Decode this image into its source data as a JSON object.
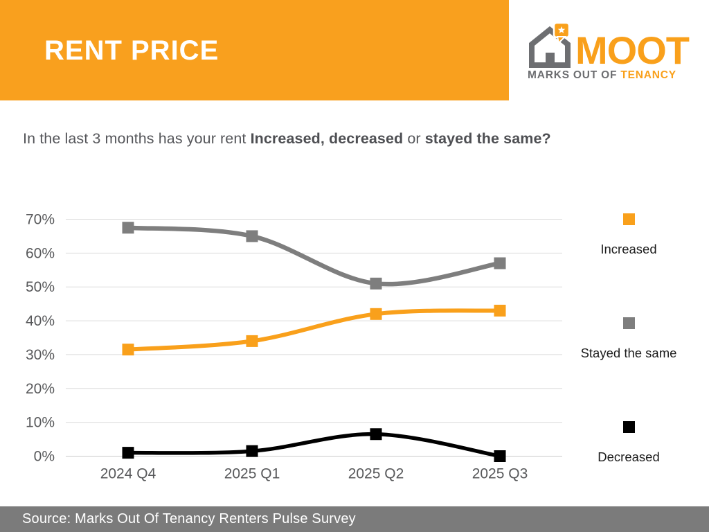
{
  "header": {
    "title": "RENT PRICE"
  },
  "logo": {
    "brand": "MOOT",
    "tagline_part1": "MARKS OUT OF",
    "tagline_part2": " TENANCY"
  },
  "question": {
    "part1": "In the last 3 months has your rent ",
    "bold1": "Increased, decreased",
    "part2": " or ",
    "bold2": "stayed the same?"
  },
  "chart_data": {
    "type": "line",
    "categories": [
      "2024 Q4",
      "2025 Q1",
      "2025 Q2",
      "2025 Q3"
    ],
    "series": [
      {
        "name": "Increased",
        "color": "#F9A01B",
        "values": [
          31.5,
          34,
          42,
          43
        ]
      },
      {
        "name": "Stayed the same",
        "color": "#7E7E7E",
        "values": [
          67.5,
          65,
          51,
          57
        ]
      },
      {
        "name": "Decreased",
        "color": "#000000",
        "values": [
          1,
          1.5,
          6.5,
          0
        ]
      }
    ],
    "ylim": [
      0,
      70
    ],
    "ytick_step": 10,
    "ytick_suffix": "%",
    "grid": true,
    "smooth": true,
    "marker": "square",
    "legend_position": "right"
  },
  "footer": {
    "source": "Source: Marks Out Of Tenancy Renters Pulse Survey"
  },
  "colors": {
    "banner_orange": "#F9A01E",
    "logo_orange": "#F9A01B",
    "logo_gray": "#6D6E71",
    "grid_line": "#DCDCDC",
    "axis_text": "#58595B",
    "footer_bg": "#7B7B7B"
  }
}
